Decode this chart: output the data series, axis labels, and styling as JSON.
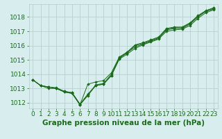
{
  "x": [
    0,
    1,
    2,
    3,
    4,
    5,
    6,
    7,
    8,
    9,
    10,
    11,
    12,
    13,
    14,
    15,
    16,
    17,
    18,
    19,
    20,
    21,
    22,
    23
  ],
  "series": [
    [
      1013.6,
      1013.2,
      1013.1,
      1013.0,
      1012.8,
      1012.7,
      1011.9,
      1012.6,
      1013.2,
      1013.3,
      1013.9,
      1015.1,
      1015.5,
      1015.9,
      1016.1,
      1016.3,
      1016.5,
      1017.1,
      1017.2,
      1017.2,
      1017.5,
      1018.0,
      1018.4,
      1018.55
    ],
    [
      1013.6,
      1013.2,
      1013.1,
      1013.0,
      1012.75,
      1012.65,
      1011.85,
      1012.5,
      1013.2,
      1013.3,
      1013.9,
      1015.05,
      1015.4,
      1015.8,
      1016.05,
      1016.25,
      1016.45,
      1017.0,
      1017.1,
      1017.15,
      1017.4,
      1017.9,
      1018.3,
      1018.5
    ],
    [
      1013.6,
      1013.2,
      1013.1,
      1013.05,
      1012.8,
      1012.7,
      1011.9,
      1012.55,
      1013.25,
      1013.35,
      1014.0,
      1015.15,
      1015.5,
      1016.0,
      1016.15,
      1016.35,
      1016.55,
      1017.15,
      1017.25,
      1017.25,
      1017.55,
      1018.05,
      1018.4,
      1018.6
    ],
    [
      1013.6,
      1013.2,
      1013.0,
      1013.0,
      1012.75,
      1012.65,
      1011.85,
      1013.3,
      1013.45,
      1013.55,
      1014.1,
      1015.2,
      1015.55,
      1016.05,
      1016.2,
      1016.4,
      1016.6,
      1017.2,
      1017.3,
      1017.3,
      1017.6,
      1018.1,
      1018.45,
      1018.65
    ]
  ],
  "line_color": "#1a6b1a",
  "marker_color": "#1a6b1a",
  "bg_color": "#d8eeee",
  "grid_color": "#b0cccc",
  "text_color": "#1a6b1a",
  "title": "Graphe pression niveau de la mer (hPa)",
  "ylim": [
    1011.6,
    1018.9
  ],
  "yticks": [
    1012,
    1013,
    1014,
    1015,
    1016,
    1017,
    1018
  ],
  "xticks": [
    0,
    1,
    2,
    3,
    4,
    5,
    6,
    7,
    8,
    9,
    10,
    11,
    12,
    13,
    14,
    15,
    16,
    17,
    18,
    19,
    20,
    21,
    22,
    23
  ],
  "title_fontsize": 7.5,
  "tick_fontsize": 6.5,
  "figwidth": 3.2,
  "figheight": 2.0,
  "dpi": 100
}
